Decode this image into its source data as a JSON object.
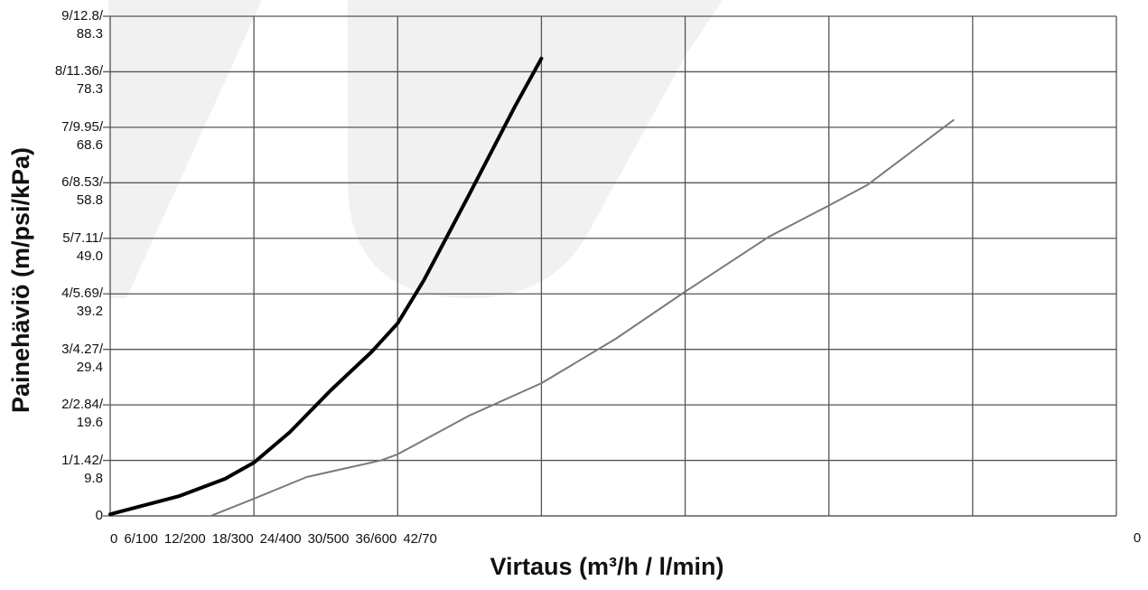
{
  "chart_data": {
    "type": "line",
    "x_label": "Virtaus (m³/h / l/min)",
    "y_label": "Painehäviö (m/psi/kPa)",
    "xlim": [
      0,
      42
    ],
    "ylim": [
      0,
      9
    ],
    "xticks": [
      0,
      {
        "value": 6,
        "label": "6/100"
      },
      {
        "value": 12,
        "label": "12/200"
      },
      {
        "value": 18,
        "label": "18/300"
      },
      {
        "value": 24,
        "label": "24/400"
      },
      {
        "value": 30,
        "label": "30/500"
      },
      {
        "value": 36,
        "label": "36/600"
      },
      {
        "value": 42,
        "label": "42/70"
      }
    ],
    "x_axis_end_label": "0",
    "yticks": [
      0,
      {
        "value": 1,
        "label": "1/1.42/\n9.8"
      },
      {
        "value": 2,
        "label": "2/2.84/\n19.6"
      },
      {
        "value": 3,
        "label": "3/4.27/\n29.4"
      },
      {
        "value": 4,
        "label": "4/5.69/\n39.2"
      },
      {
        "value": 5,
        "label": "5/7.11/\n49.0"
      },
      {
        "value": 6,
        "label": "6/8.53/\n58.8"
      },
      {
        "value": 7,
        "label": "7/9.95/\n68.6"
      },
      {
        "value": 8,
        "label": "8/11.36/\n78.3"
      },
      {
        "value": 9,
        "label": "9/12.8/\n88.3"
      }
    ],
    "grid": true,
    "series": [
      {
        "color": "#000000",
        "width": 4,
        "x": [
          0,
          2.9,
          4.8,
          6,
          7.5,
          9.2,
          10.9,
          12,
          13.1,
          15,
          16.9,
          18
        ],
        "values": [
          0.03,
          0.36,
          0.67,
          0.96,
          1.51,
          2.26,
          2.95,
          3.47,
          4.25,
          5.8,
          7.38,
          8.24
        ]
      },
      {
        "color": "#7a7a7a",
        "width": 2,
        "x": [
          4.2,
          6,
          8.2,
          11.3,
          12,
          15,
          18,
          21.1,
          24,
          27.5,
          30,
          31.6,
          35.2
        ],
        "values": [
          0,
          0.31,
          0.7,
          1.0,
          1.11,
          1.81,
          2.39,
          3.19,
          4.04,
          5.03,
          5.59,
          5.96,
          7.13
        ]
      }
    ]
  }
}
